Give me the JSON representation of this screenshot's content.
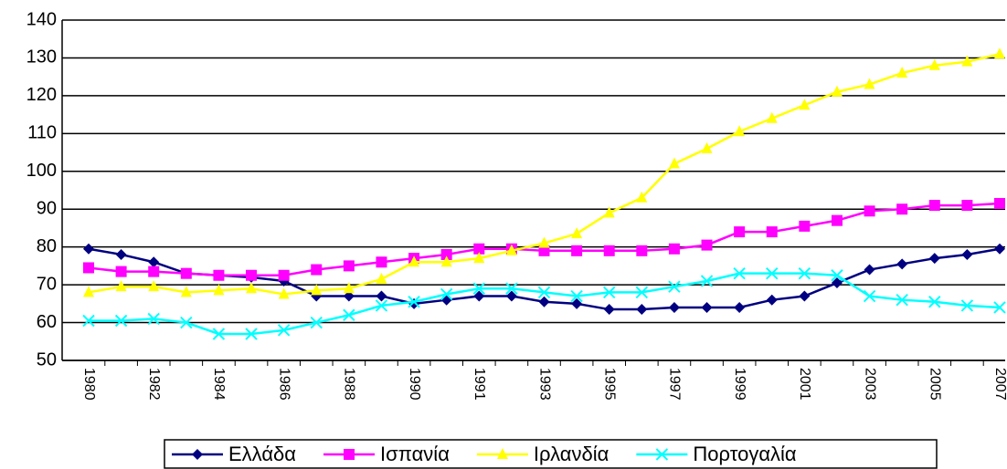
{
  "chart_data": {
    "type": "line",
    "categories": [
      "1980",
      null,
      "1982",
      null,
      "1984",
      null,
      "1986",
      null,
      "1988",
      null,
      "1990",
      null,
      "1991",
      null,
      "1993",
      null,
      "1995",
      null,
      "1997",
      null,
      "1999",
      null,
      "2001",
      null,
      "2003",
      null,
      "2005",
      null,
      "2007"
    ],
    "series": [
      {
        "name": "Ελλάδα",
        "color": "#000080",
        "marker": "diamond",
        "values": [
          79.5,
          78,
          76,
          73,
          72.5,
          72,
          71,
          67,
          67,
          67,
          65,
          66,
          67,
          67,
          65.5,
          65,
          63.5,
          63.5,
          64,
          64,
          64,
          66,
          67,
          70.5,
          74,
          75.5,
          77,
          78,
          79.5
        ]
      },
      {
        "name": "Ισπανία",
        "color": "#ff00ff",
        "marker": "square",
        "values": [
          74.5,
          73.5,
          73.5,
          73,
          72.5,
          72.5,
          72.5,
          74,
          75,
          76,
          77,
          78,
          79.5,
          79.5,
          79,
          79,
          79,
          79,
          79.5,
          80.5,
          84,
          84,
          85.5,
          87,
          89.5,
          90,
          91,
          91,
          91.5
        ]
      },
      {
        "name": "Ιρλανδία",
        "color": "#ffff00",
        "marker": "triangle",
        "values": [
          68,
          69.5,
          69.5,
          68,
          68.5,
          69,
          67.5,
          68.5,
          69,
          71.5,
          76,
          76,
          77,
          79,
          81,
          83.5,
          89,
          93,
          102,
          106,
          110.5,
          114,
          117.5,
          121,
          123,
          126,
          128,
          129,
          131
        ]
      },
      {
        "name": "Πορτογαλία",
        "color": "#00ffff",
        "marker": "x",
        "values": [
          60.5,
          60.5,
          61,
          60,
          57,
          57,
          58,
          60,
          62,
          64.5,
          65.5,
          67.5,
          69,
          69,
          68,
          67,
          68,
          68,
          69.5,
          71,
          73,
          73,
          73,
          72.5,
          67,
          66,
          65.5,
          64.5,
          64
        ]
      }
    ],
    "ylim": [
      50,
      140
    ],
    "yticks": [
      50,
      60,
      70,
      80,
      90,
      100,
      110,
      120,
      130,
      140
    ],
    "grid": true,
    "legend": "bottom"
  }
}
